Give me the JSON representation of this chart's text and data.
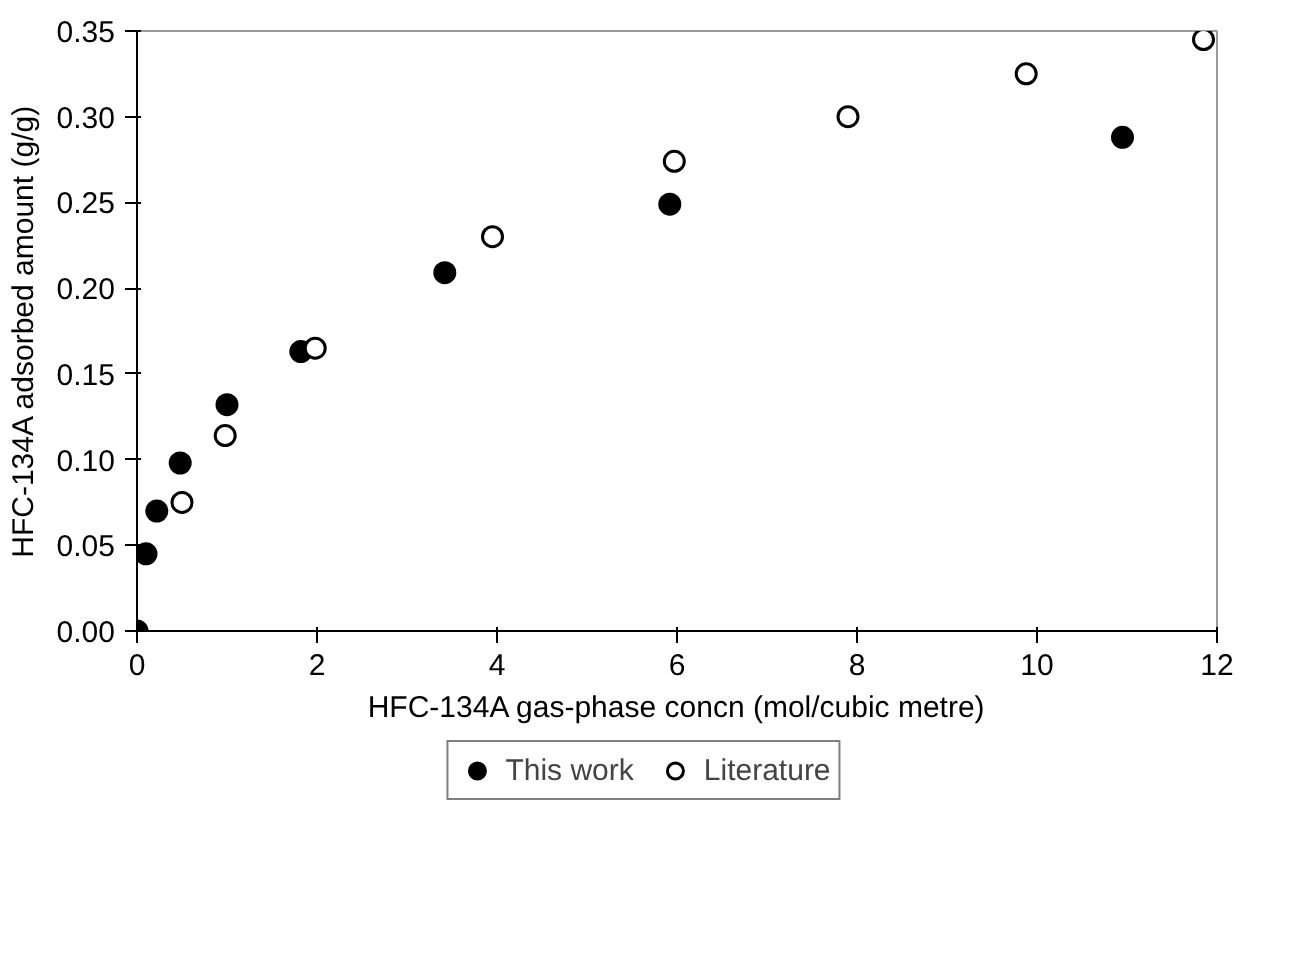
{
  "chart_data": {
    "type": "scatter",
    "xlabel": "HFC-134A gas-phase concn (mol/cubic metre)",
    "ylabel": "HFC-134A adsorbed amount (g/g)",
    "xlim": [
      0,
      12
    ],
    "xticks": [
      0,
      2,
      4,
      6,
      8,
      10,
      12
    ],
    "ylim": [
      0,
      0.35
    ],
    "yticks": [
      {
        "value": 0,
        "label": "0.00"
      },
      {
        "value": 0.05,
        "label": "0.05"
      },
      {
        "value": 0.1,
        "label": "0.10"
      },
      {
        "value": 0.15,
        "label": "0.15"
      },
      {
        "value": 0.2,
        "label": "0.20"
      },
      {
        "value": 0.25,
        "label": "0.25"
      },
      {
        "value": 0.3,
        "label": "0.30"
      },
      {
        "value": 0.35,
        "label": "0.35"
      }
    ],
    "legend": "bottom",
    "marker": "circle",
    "series": [
      {
        "name": "This work",
        "color": "#000000",
        "x": [
          0,
          0.1,
          0.22,
          0.48,
          1.0,
          1.82,
          3.42,
          5.92,
          10.95
        ],
        "values": [
          0,
          0.045,
          0.07,
          0.098,
          0.132,
          0.163,
          0.209,
          0.249,
          0.288
        ]
      },
      {
        "name": "Literature",
        "color": "#ffffff",
        "x": [
          0.5,
          0.98,
          1.98,
          3.95,
          5.97,
          7.9,
          9.88,
          11.85
        ],
        "values": [
          0.075,
          0.114,
          0.165,
          0.23,
          0.274,
          0.3,
          0.325,
          0.345
        ]
      }
    ]
  }
}
